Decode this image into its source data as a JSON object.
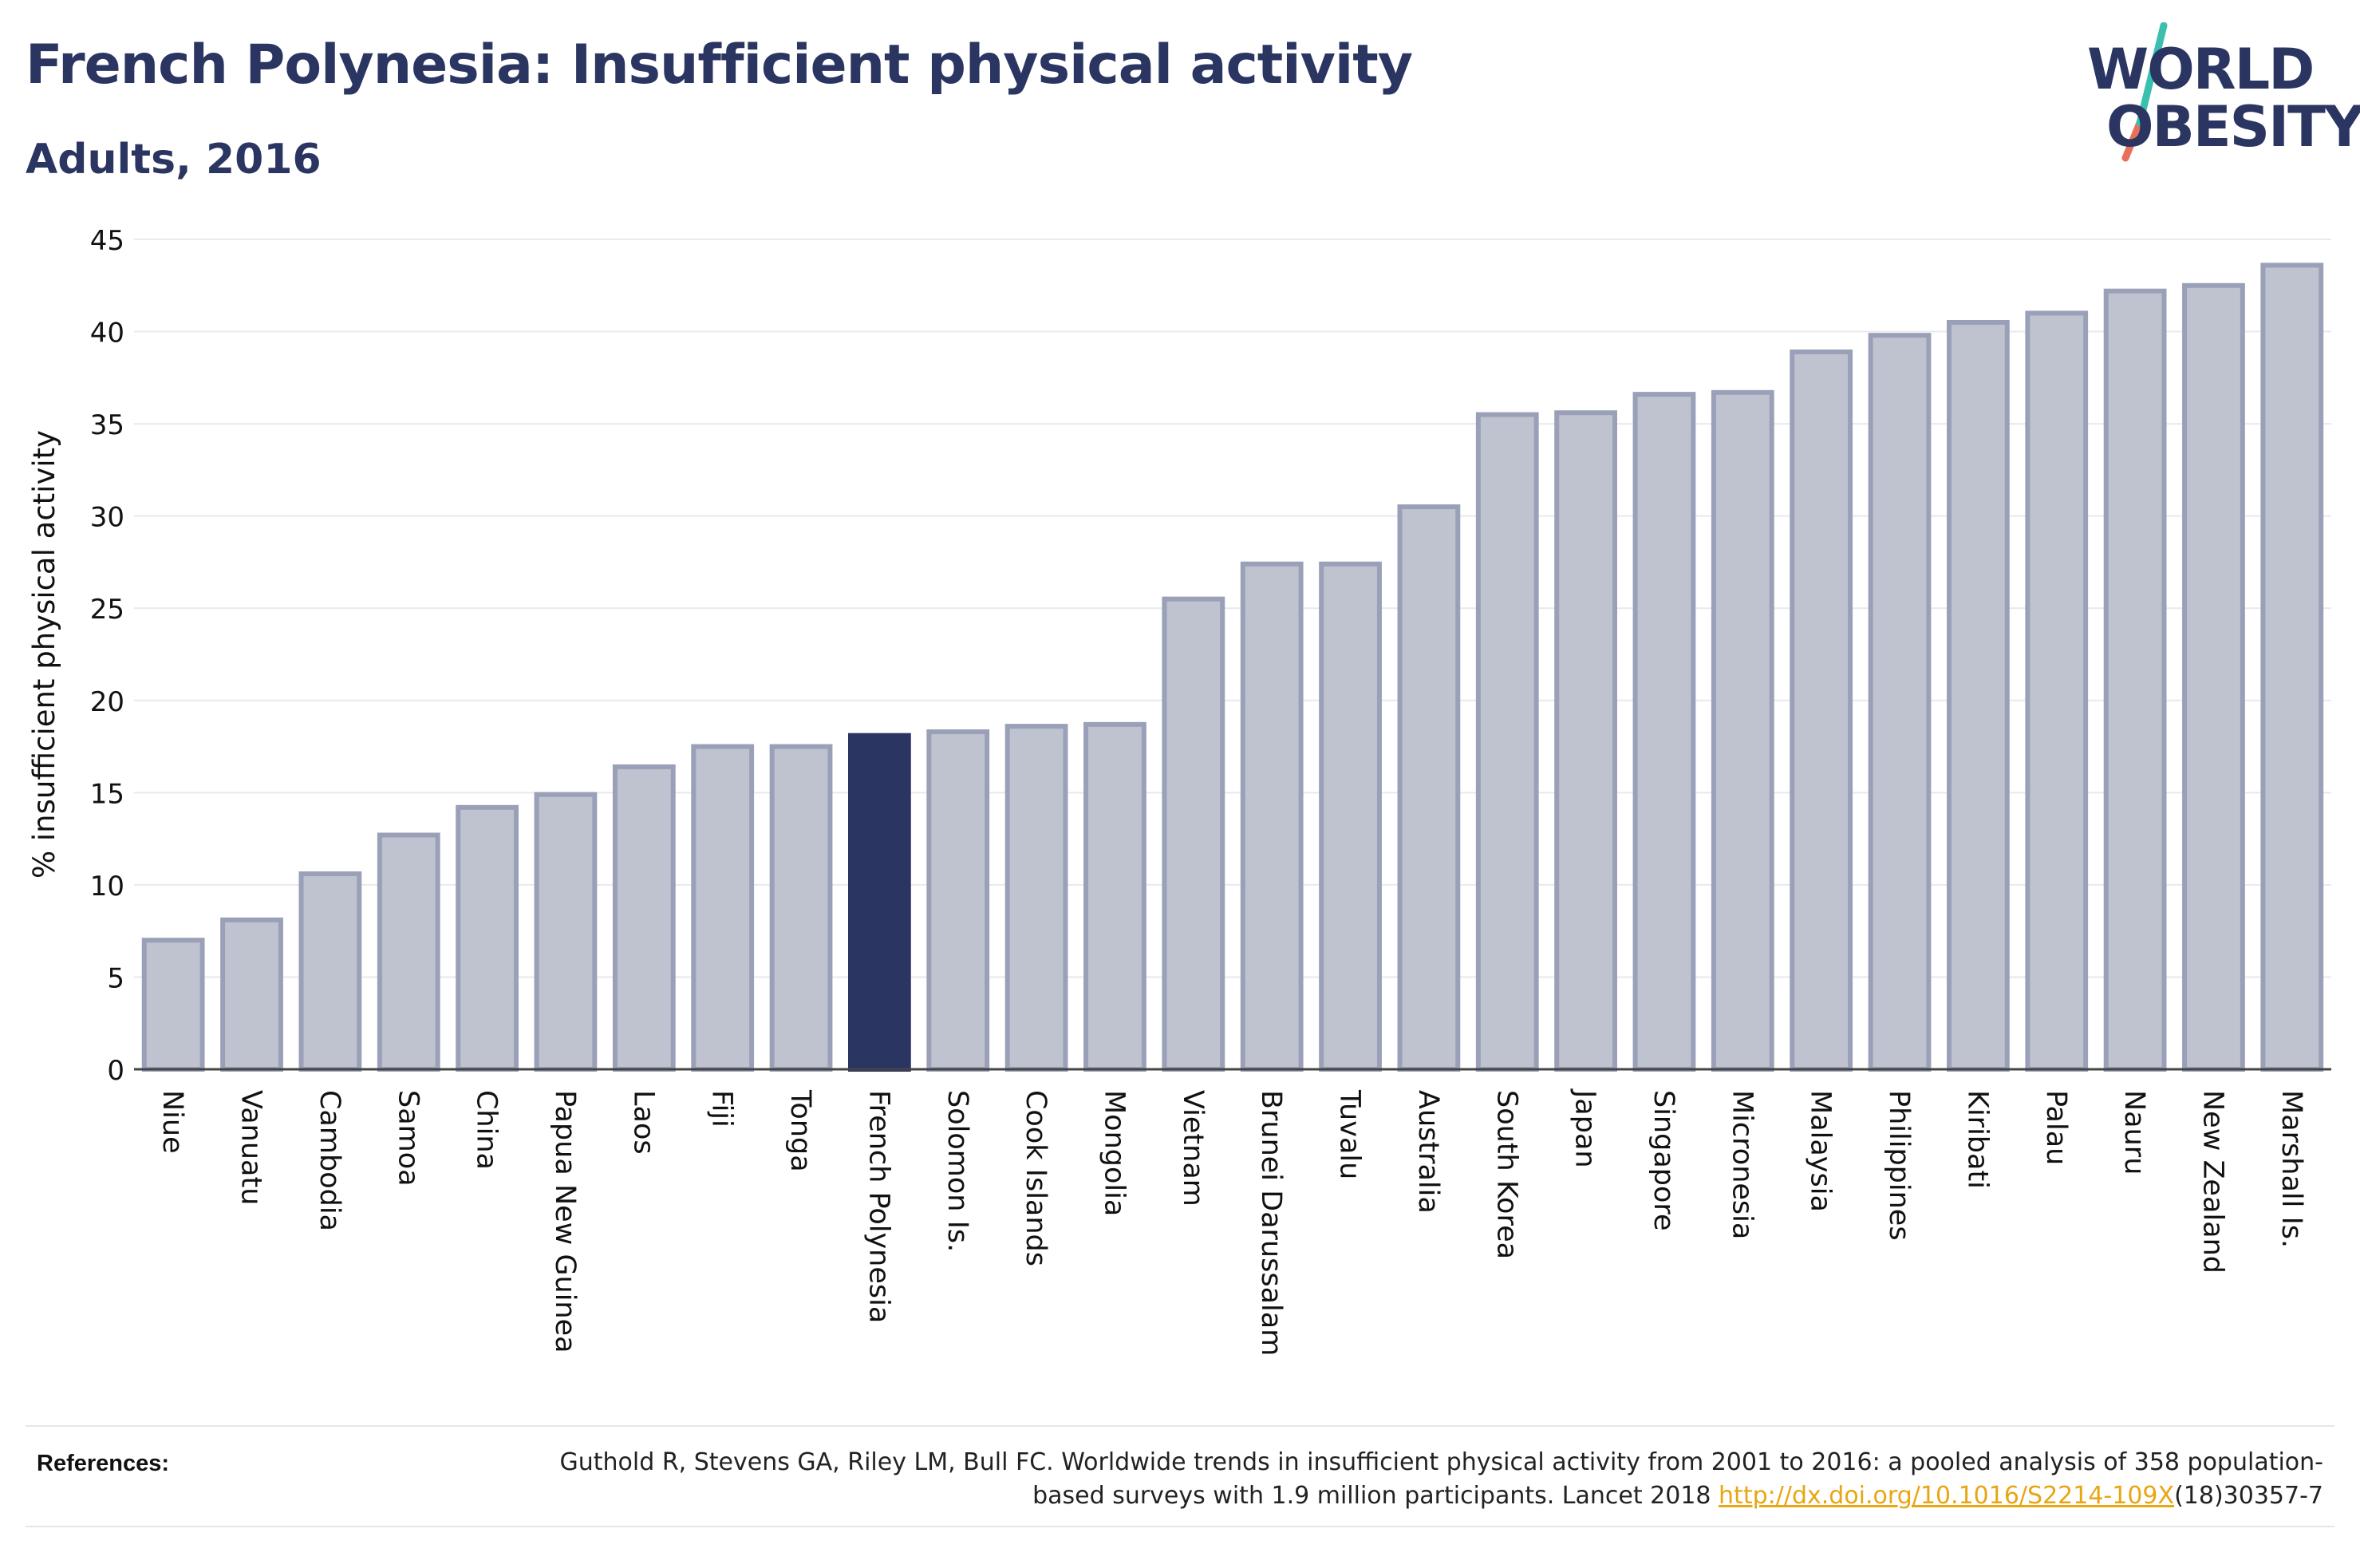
{
  "header": {
    "title": "French Polynesia: Insufficient physical activity",
    "subtitle": "Adults, 2016"
  },
  "logo": {
    "line1": "WORLD",
    "line2": "OBESITY",
    "colors": {
      "text": "#2b3561",
      "slash_top": "#3bbfb1",
      "slash_bottom": "#e8705a"
    }
  },
  "chart_data": {
    "type": "bar",
    "title": "French Polynesia: Insufficient physical activity",
    "subtitle": "Adults, 2016",
    "xlabel": "",
    "ylabel": "% insufficient physical activity",
    "ylim": [
      0,
      45
    ],
    "yticks": [
      0,
      5,
      10,
      15,
      20,
      25,
      30,
      35,
      40,
      45
    ],
    "grid": true,
    "highlight": "French Polynesia",
    "colors": {
      "bar": "#bfc2cf",
      "bar_edge": "#9aa0b8",
      "highlight": "#2b3561"
    },
    "categories": [
      "Niue",
      "Vanuatu",
      "Cambodia",
      "Samoa",
      "China",
      "Papua New Guinea",
      "Laos",
      "Fiji",
      "Tonga",
      "French Polynesia",
      "Solomon Is.",
      "Cook Islands",
      "Mongolia",
      "Vietnam",
      "Brunei Darussalam",
      "Tuvalu",
      "Australia",
      "South Korea",
      "Japan",
      "Singapore",
      "Micronesia",
      "Malaysia",
      "Philippines",
      "Kiribati",
      "Palau",
      "Nauru",
      "New Zealand",
      "Marshall Is."
    ],
    "values": [
      7.0,
      8.1,
      10.6,
      12.7,
      14.2,
      14.9,
      16.4,
      17.5,
      17.5,
      18.1,
      18.3,
      18.6,
      18.7,
      25.5,
      27.4,
      27.4,
      30.5,
      35.5,
      35.6,
      36.6,
      36.7,
      38.9,
      39.8,
      40.5,
      41.0,
      42.2,
      42.5,
      43.6
    ]
  },
  "references": {
    "label": "References:",
    "text_before": "Guthold R, Stevens GA, Riley LM, Bull FC. Worldwide trends in insufficient physical activity from 2001 to 2016: a pooled analysis of 358 population-based surveys with 1.9 million participants. Lancet 2018 ",
    "link_text": "http://dx.doi.org/10.1016/S2214-109X",
    "text_after": "(18)30357-7"
  }
}
